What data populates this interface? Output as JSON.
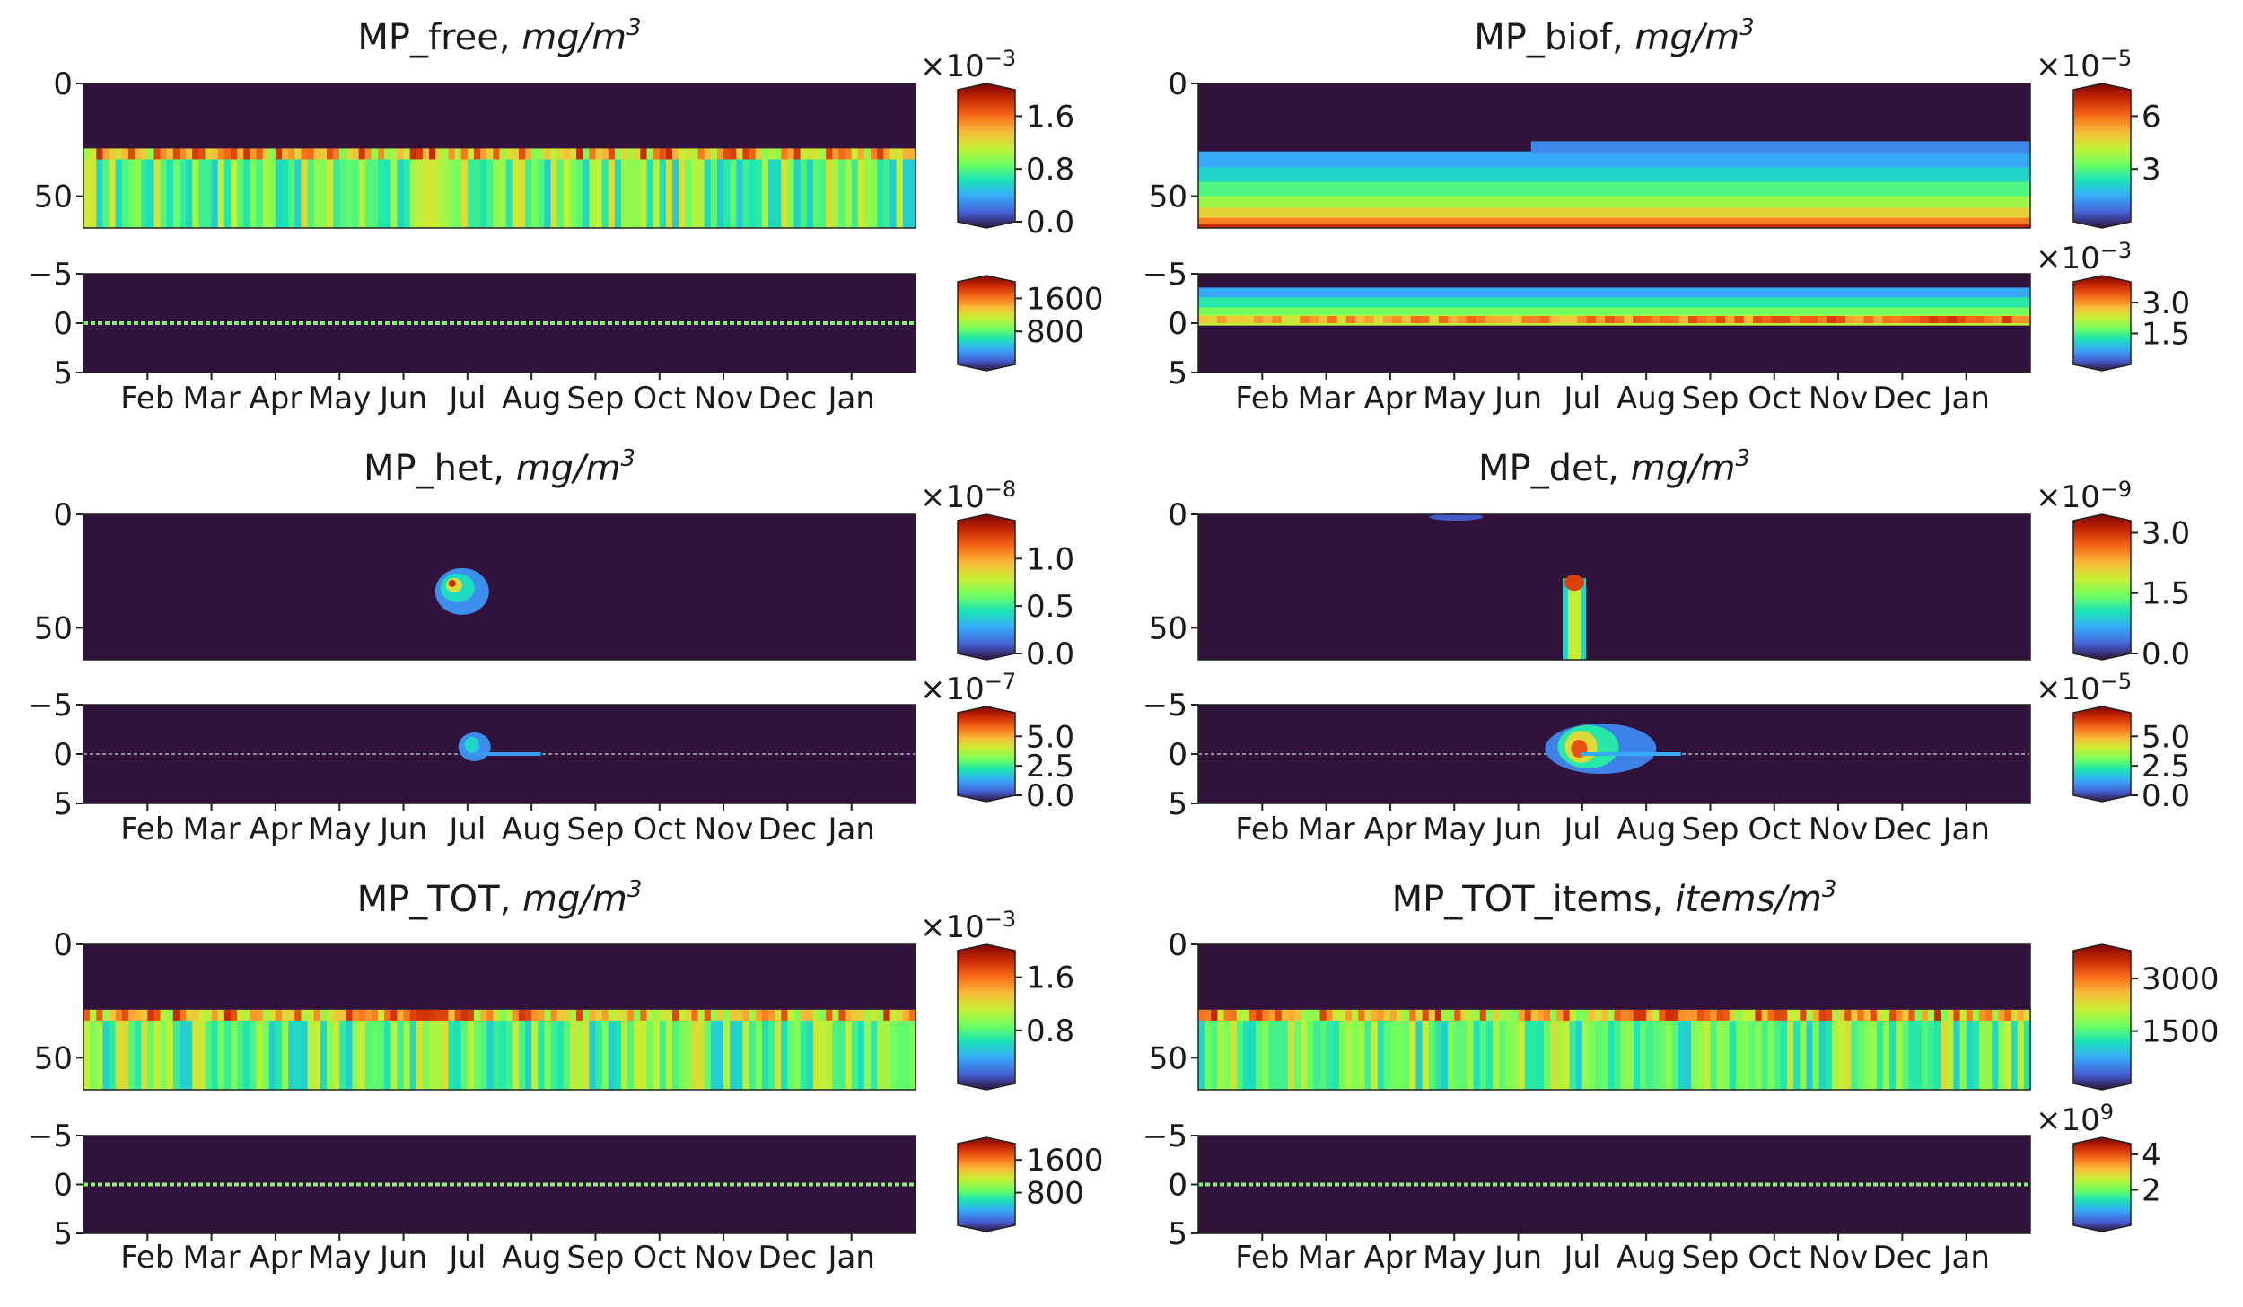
{
  "figure": {
    "months": [
      "Feb",
      "Mar",
      "Apr",
      "May",
      "Jun",
      "Jul",
      "Aug",
      "Sep",
      "Oct",
      "Nov",
      "Dec",
      "Jan"
    ],
    "colormap": [
      "#30123b",
      "#4662d8",
      "#36aaf9",
      "#1ae4b6",
      "#72fe5e",
      "#c7ef34",
      "#faba39",
      "#f66b19",
      "#cb2a04",
      "#7a0403"
    ],
    "background_color": "#30123b"
  },
  "chart_data": [
    {
      "type": "heatmap",
      "title": "MP_free, ",
      "unit": "mg/m",
      "unit_sup": "3",
      "pattern": "free",
      "top": {
        "yticks": [
          "0",
          "50"
        ],
        "colorbar": {
          "exponent_base": "×10",
          "exponent": "−3",
          "ticks": [
            {
              "v": 0.0,
              "label": "0.0"
            },
            {
              "v": 0.8,
              "label": "0.8"
            },
            {
              "v": 1.6,
              "label": "1.6"
            }
          ],
          "range": [
            0,
            2.0
          ]
        }
      },
      "bottom": {
        "yticks": [
          "−5",
          "0",
          "5"
        ],
        "colorbar": {
          "exponent_base": "",
          "exponent": "",
          "ticks": [
            {
              "v": 800,
              "label": "800"
            },
            {
              "v": 1600,
              "label": "1600"
            }
          ],
          "range": [
            0,
            2000
          ]
        }
      }
    },
    {
      "type": "heatmap",
      "title": "MP_biof, ",
      "unit": "mg/m",
      "unit_sup": "3",
      "pattern": "biof",
      "top": {
        "yticks": [
          "0",
          "50"
        ],
        "colorbar": {
          "exponent_base": "×10",
          "exponent": "−5",
          "ticks": [
            {
              "v": 3,
              "label": "3"
            },
            {
              "v": 6,
              "label": "6"
            }
          ],
          "range": [
            0,
            7.5
          ]
        }
      },
      "bottom": {
        "yticks": [
          "−5",
          "0",
          "5"
        ],
        "colorbar": {
          "exponent_base": "×10",
          "exponent": "−3",
          "ticks": [
            {
              "v": 1.5,
              "label": "1.5"
            },
            {
              "v": 3.0,
              "label": "3.0"
            }
          ],
          "range": [
            0,
            4.0
          ]
        }
      }
    },
    {
      "type": "heatmap",
      "title": "MP_het, ",
      "unit": "mg/m",
      "unit_sup": "3",
      "pattern": "het",
      "top": {
        "yticks": [
          "0",
          "50"
        ],
        "colorbar": {
          "exponent_base": "×10",
          "exponent": "−8",
          "ticks": [
            {
              "v": 0.0,
              "label": "0.0"
            },
            {
              "v": 0.5,
              "label": "0.5"
            },
            {
              "v": 1.0,
              "label": "1.0"
            }
          ],
          "range": [
            0,
            1.4
          ]
        }
      },
      "bottom": {
        "yticks": [
          "−5",
          "0",
          "5"
        ],
        "colorbar": {
          "exponent_base": "×10",
          "exponent": "−7",
          "ticks": [
            {
              "v": 0.0,
              "label": "0.0"
            },
            {
              "v": 2.5,
              "label": "2.5"
            },
            {
              "v": 5.0,
              "label": "5.0"
            }
          ],
          "range": [
            0,
            7.0
          ]
        }
      }
    },
    {
      "type": "heatmap",
      "title": "MP_det, ",
      "unit": "mg/m",
      "unit_sup": "3",
      "pattern": "det",
      "top": {
        "yticks": [
          "0",
          "50"
        ],
        "colorbar": {
          "exponent_base": "×10",
          "exponent": "−9",
          "ticks": [
            {
              "v": 0.0,
              "label": "0.0"
            },
            {
              "v": 1.5,
              "label": "1.5"
            },
            {
              "v": 3.0,
              "label": "3.0"
            }
          ],
          "range": [
            0,
            3.3
          ]
        }
      },
      "bottom": {
        "yticks": [
          "−5",
          "0",
          "5"
        ],
        "colorbar": {
          "exponent_base": "×10",
          "exponent": "−5",
          "ticks": [
            {
              "v": 0.0,
              "label": "0.0"
            },
            {
              "v": 2.5,
              "label": "2.5"
            },
            {
              "v": 5.0,
              "label": "5.0"
            }
          ],
          "range": [
            0,
            7.0
          ]
        }
      }
    },
    {
      "type": "heatmap",
      "title": "MP_TOT, ",
      "unit": "mg/m",
      "unit_sup": "3",
      "pattern": "free",
      "top": {
        "yticks": [
          "0",
          "50"
        ],
        "colorbar": {
          "exponent_base": "×10",
          "exponent": "−3",
          "ticks": [
            {
              "v": 0.8,
              "label": "0.8"
            },
            {
              "v": 1.6,
              "label": "1.6"
            }
          ],
          "range": [
            0,
            2.0
          ]
        }
      },
      "bottom": {
        "yticks": [
          "−5",
          "0",
          "5"
        ],
        "colorbar": {
          "exponent_base": "",
          "exponent": "",
          "ticks": [
            {
              "v": 800,
              "label": "800"
            },
            {
              "v": 1600,
              "label": "1600"
            }
          ],
          "range": [
            0,
            2000
          ]
        }
      }
    },
    {
      "type": "heatmap",
      "title": "MP_TOT_items, ",
      "unit": "items/m",
      "unit_sup": "3",
      "pattern": "free",
      "top": {
        "yticks": [
          "0",
          "50"
        ],
        "colorbar": {
          "exponent_base": "",
          "exponent": "",
          "ticks": [
            {
              "v": 1500,
              "label": "1500"
            },
            {
              "v": 3000,
              "label": "3000"
            }
          ],
          "range": [
            0,
            3800
          ]
        }
      },
      "bottom": {
        "yticks": [
          "−5",
          "0",
          "5"
        ],
        "colorbar": {
          "exponent_base": "×10",
          "exponent": "9",
          "ticks": [
            {
              "v": 2,
              "label": "2"
            },
            {
              "v": 4,
              "label": "4"
            }
          ],
          "range": [
            0,
            4.6
          ]
        }
      }
    }
  ]
}
